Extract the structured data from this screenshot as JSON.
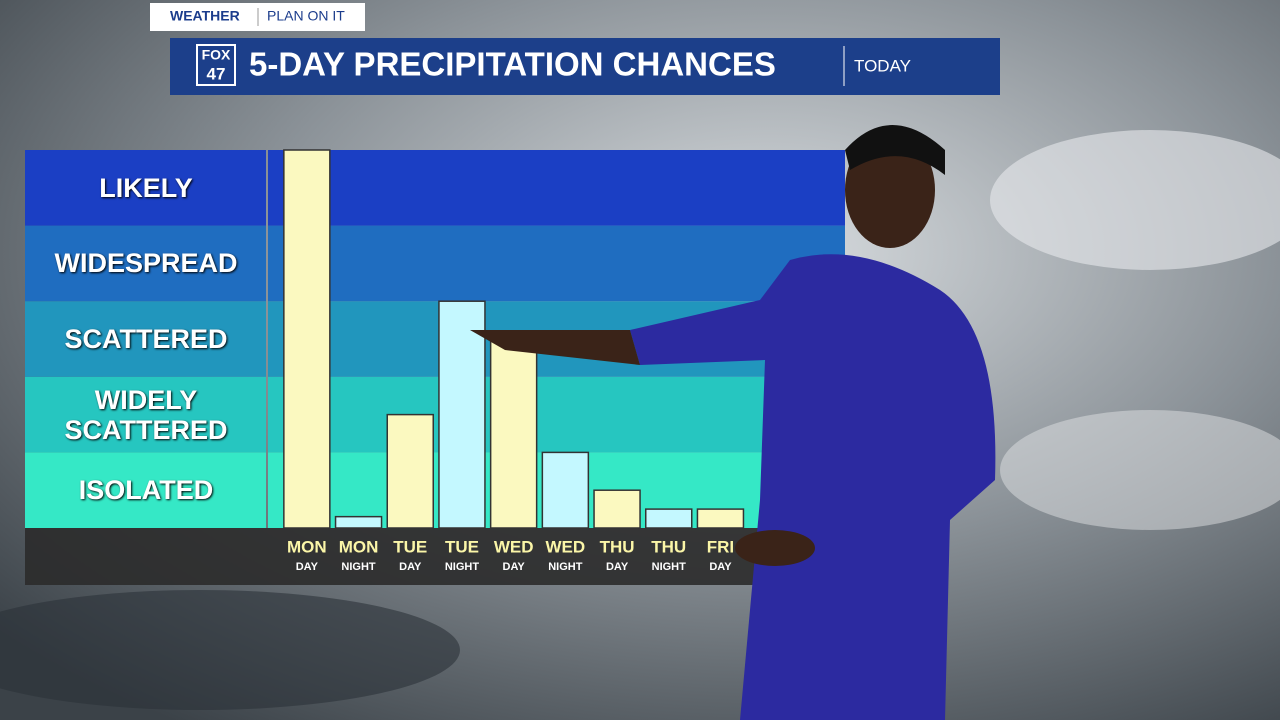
{
  "header": {
    "brand": "WEATHER",
    "slogan": "PLAN ON IT",
    "logo_top": "FOX",
    "logo_bottom": "47",
    "title": "5-DAY PRECIPITATION CHANCES",
    "tag": "TODAY"
  },
  "chart_data": {
    "type": "bar",
    "categories": [
      [
        "MON",
        "DAY"
      ],
      [
        "MON",
        "NIGHT"
      ],
      [
        "TUE",
        "DAY"
      ],
      [
        "TUE",
        "NIGHT"
      ],
      [
        "WED",
        "DAY"
      ],
      [
        "WED",
        "NIGHT"
      ],
      [
        "THU",
        "DAY"
      ],
      [
        "THU",
        "NIGHT"
      ],
      [
        "FRI",
        "DAY"
      ]
    ],
    "values": [
      5.0,
      0.15,
      1.5,
      3.0,
      2.5,
      1.0,
      0.5,
      0.25,
      0.25
    ],
    "colors": [
      "#fbf9c0",
      "#c4f8ff",
      "#fbf9c0",
      "#c4f8ff",
      "#fbf9c0",
      "#c4f8ff",
      "#fbf9c0",
      "#c4f8ff",
      "#fbf9c0"
    ],
    "ylim": [
      0,
      5
    ],
    "yticks": [
      {
        "value": 0.5,
        "label": "ISOLATED"
      },
      {
        "value": 1.5,
        "label": "WIDELY SCATTERED"
      },
      {
        "value": 2.5,
        "label": "SCATTERED"
      },
      {
        "value": 3.5,
        "label": "WIDESPREAD"
      },
      {
        "value": 4.5,
        "label": "LIKELY"
      }
    ],
    "band_colors": [
      "#35e8c6",
      "#26c6c0",
      "#2196bd",
      "#1f6dc0",
      "#1b3fc4"
    ]
  }
}
